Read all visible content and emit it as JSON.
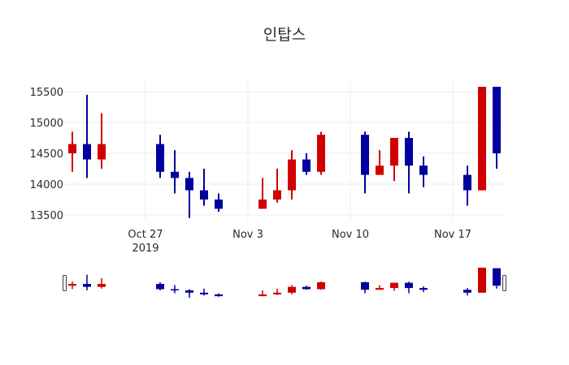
{
  "chart_data": {
    "type": "candlestick",
    "title": "인탑스",
    "xlabel": "",
    "ylabel": "",
    "ylim": [
      13400,
      15580
    ],
    "grid": true,
    "legend": "none",
    "increasing_color": "#d10000",
    "decreasing_color": "#0000a0",
    "y_ticks": [
      13500,
      14000,
      14500,
      15000,
      15500
    ],
    "x_ticks": [
      {
        "date": "2019-10-27",
        "label": "Oct 27",
        "sublabel": "2019"
      },
      {
        "date": "2019-11-03",
        "label": "Nov 3",
        "sublabel": ""
      },
      {
        "date": "2019-11-10",
        "label": "Nov 10",
        "sublabel": ""
      },
      {
        "date": "2019-11-17",
        "label": "Nov 17",
        "sublabel": ""
      }
    ],
    "x_range": [
      "2019-10-20",
      "2019-11-21"
    ],
    "candles": [
      {
        "date": "2019-10-21",
        "open": 14600,
        "high": 14700,
        "low": 14200,
        "close": 14500
      },
      {
        "date": "2019-10-22",
        "open": 14500,
        "high": 14850,
        "low": 14200,
        "close": 14650
      },
      {
        "date": "2019-10-23",
        "open": 14650,
        "high": 15450,
        "low": 14100,
        "close": 14400
      },
      {
        "date": "2019-10-24",
        "open": 14400,
        "high": 15150,
        "low": 14250,
        "close": 14650
      },
      {
        "date": "2019-10-28",
        "open": 14650,
        "high": 14800,
        "low": 14100,
        "close": 14200
      },
      {
        "date": "2019-10-29",
        "open": 14200,
        "high": 14550,
        "low": 13850,
        "close": 14100
      },
      {
        "date": "2019-10-30",
        "open": 14100,
        "high": 14200,
        "low": 13450,
        "close": 13900
      },
      {
        "date": "2019-10-31",
        "open": 13900,
        "high": 14250,
        "low": 13650,
        "close": 13750
      },
      {
        "date": "2019-11-01",
        "open": 13750,
        "high": 13850,
        "low": 13550,
        "close": 13600
      },
      {
        "date": "2019-11-04",
        "open": 13600,
        "high": 14100,
        "low": 13600,
        "close": 13750
      },
      {
        "date": "2019-11-05",
        "open": 13750,
        "high": 14250,
        "low": 13700,
        "close": 13900
      },
      {
        "date": "2019-11-06",
        "open": 13900,
        "high": 14550,
        "low": 13750,
        "close": 14400
      },
      {
        "date": "2019-11-07",
        "open": 14400,
        "high": 14500,
        "low": 14150,
        "close": 14200
      },
      {
        "date": "2019-11-08",
        "open": 14200,
        "high": 14850,
        "low": 14150,
        "close": 14800
      },
      {
        "date": "2019-11-11",
        "open": 14800,
        "high": 14850,
        "low": 13850,
        "close": 14150
      },
      {
        "date": "2019-11-12",
        "open": 14150,
        "high": 14550,
        "low": 14150,
        "close": 14300
      },
      {
        "date": "2019-11-13",
        "open": 14300,
        "high": 14750,
        "low": 14050,
        "close": 14750
      },
      {
        "date": "2019-11-14",
        "open": 14750,
        "high": 14850,
        "low": 13850,
        "close": 14300
      },
      {
        "date": "2019-11-15",
        "open": 14300,
        "high": 14450,
        "low": 13950,
        "close": 14150
      },
      {
        "date": "2019-11-18",
        "open": 14150,
        "high": 14300,
        "low": 13650,
        "close": 13900
      },
      {
        "date": "2019-11-19",
        "open": 13900,
        "high": 16500,
        "low": 13900,
        "close": 16500
      },
      {
        "date": "2019-11-20",
        "open": 16000,
        "high": 16000,
        "low": 14250,
        "close": 14500
      }
    ],
    "rangeslider": {
      "visible": true
    }
  }
}
